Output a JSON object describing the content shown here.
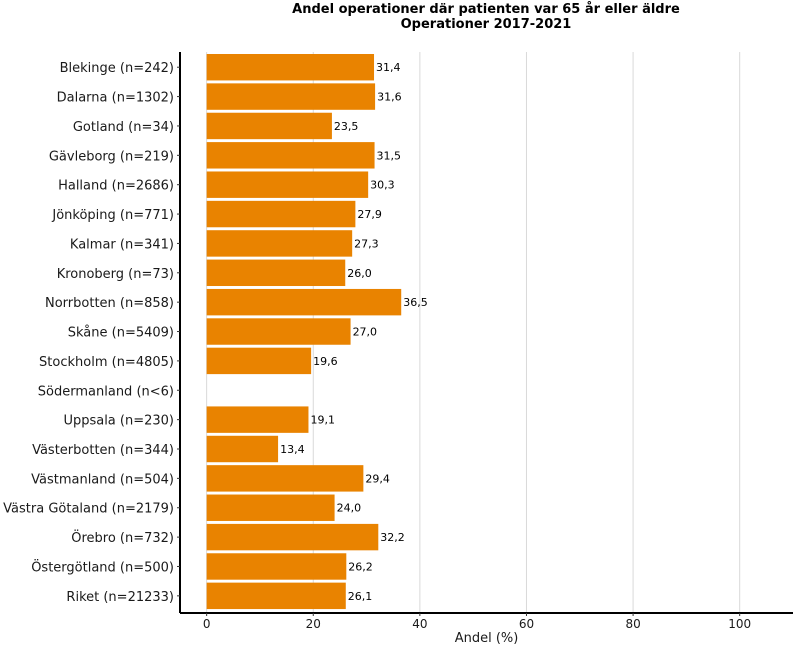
{
  "chart_data": {
    "type": "bar",
    "orientation": "horizontal",
    "title_line1": "Andel operationer där patienten var 65 år eller äldre",
    "title_line2": "Operationer 2017-2021",
    "xlabel": "Andel (%)",
    "ylabel": "",
    "xlim": [
      -5,
      110
    ],
    "xticks": [
      0,
      20,
      40,
      60,
      80,
      100
    ],
    "grid": "vertical",
    "bar_color": "#E98300",
    "categories": [
      "Blekinge (n=242)",
      "Dalarna (n=1302)",
      "Gotland (n=34)",
      "Gävleborg (n=219)",
      "Halland (n=2686)",
      "Jönköping (n=771)",
      "Kalmar (n=341)",
      "Kronoberg (n=73)",
      "Norrbotten (n=858)",
      "Skåne (n=5409)",
      "Stockholm (n=4805)",
      "Södermanland (n<6)",
      "Uppsala (n=230)",
      "Västerbotten (n=344)",
      "Västmanland (n=504)",
      "Västra Götaland (n=2179)",
      "Örebro (n=732)",
      "Östergötland (n=500)",
      "Riket (n=21233)"
    ],
    "values": [
      31.4,
      31.6,
      23.5,
      31.5,
      30.3,
      27.9,
      27.3,
      26.0,
      36.5,
      27.0,
      19.6,
      null,
      19.1,
      13.4,
      29.4,
      24.0,
      32.2,
      26.2,
      26.1
    ],
    "value_labels": [
      "31,4",
      "31,6",
      "23,5",
      "31,5",
      "30,3",
      "27,9",
      "27,3",
      "26,0",
      "36,5",
      "27,0",
      "19,6",
      "",
      "19,1",
      "13,4",
      "29,4",
      "24,0",
      "32,2",
      "26,2",
      "26,1"
    ]
  }
}
